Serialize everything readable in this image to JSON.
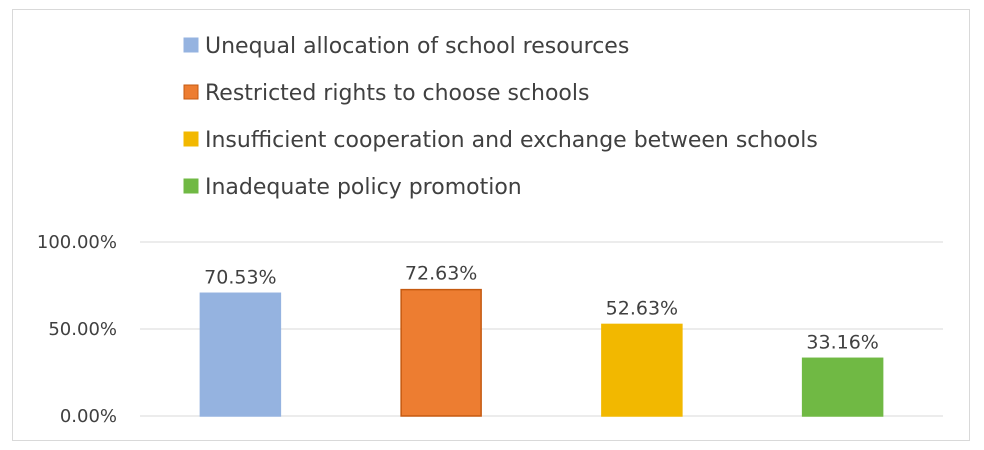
{
  "chart_data": {
    "type": "bar",
    "categories": [
      "Unequal allocation of school resources",
      "Restricted rights to choose schools",
      "Insufficient cooperation and exchange between schools",
      "Inadequate policy promotion"
    ],
    "values": [
      70.53,
      72.63,
      52.63,
      33.16
    ],
    "data_labels": [
      "70.53%",
      "72.63%",
      "52.63%",
      "33.16%"
    ],
    "colors": [
      "#95b3e0",
      "#ed7d31",
      "#f2b800",
      "#70b944"
    ],
    "border_colors": [
      "#95b3e0",
      "#c55a11",
      "#f2b800",
      "#70b944"
    ],
    "ylim": [
      0,
      100
    ],
    "yticks": [
      0,
      50,
      100
    ],
    "ytick_labels": [
      "0.00%",
      "50.00%",
      "100.00%"
    ],
    "grid": true,
    "legend_position": "top"
  }
}
